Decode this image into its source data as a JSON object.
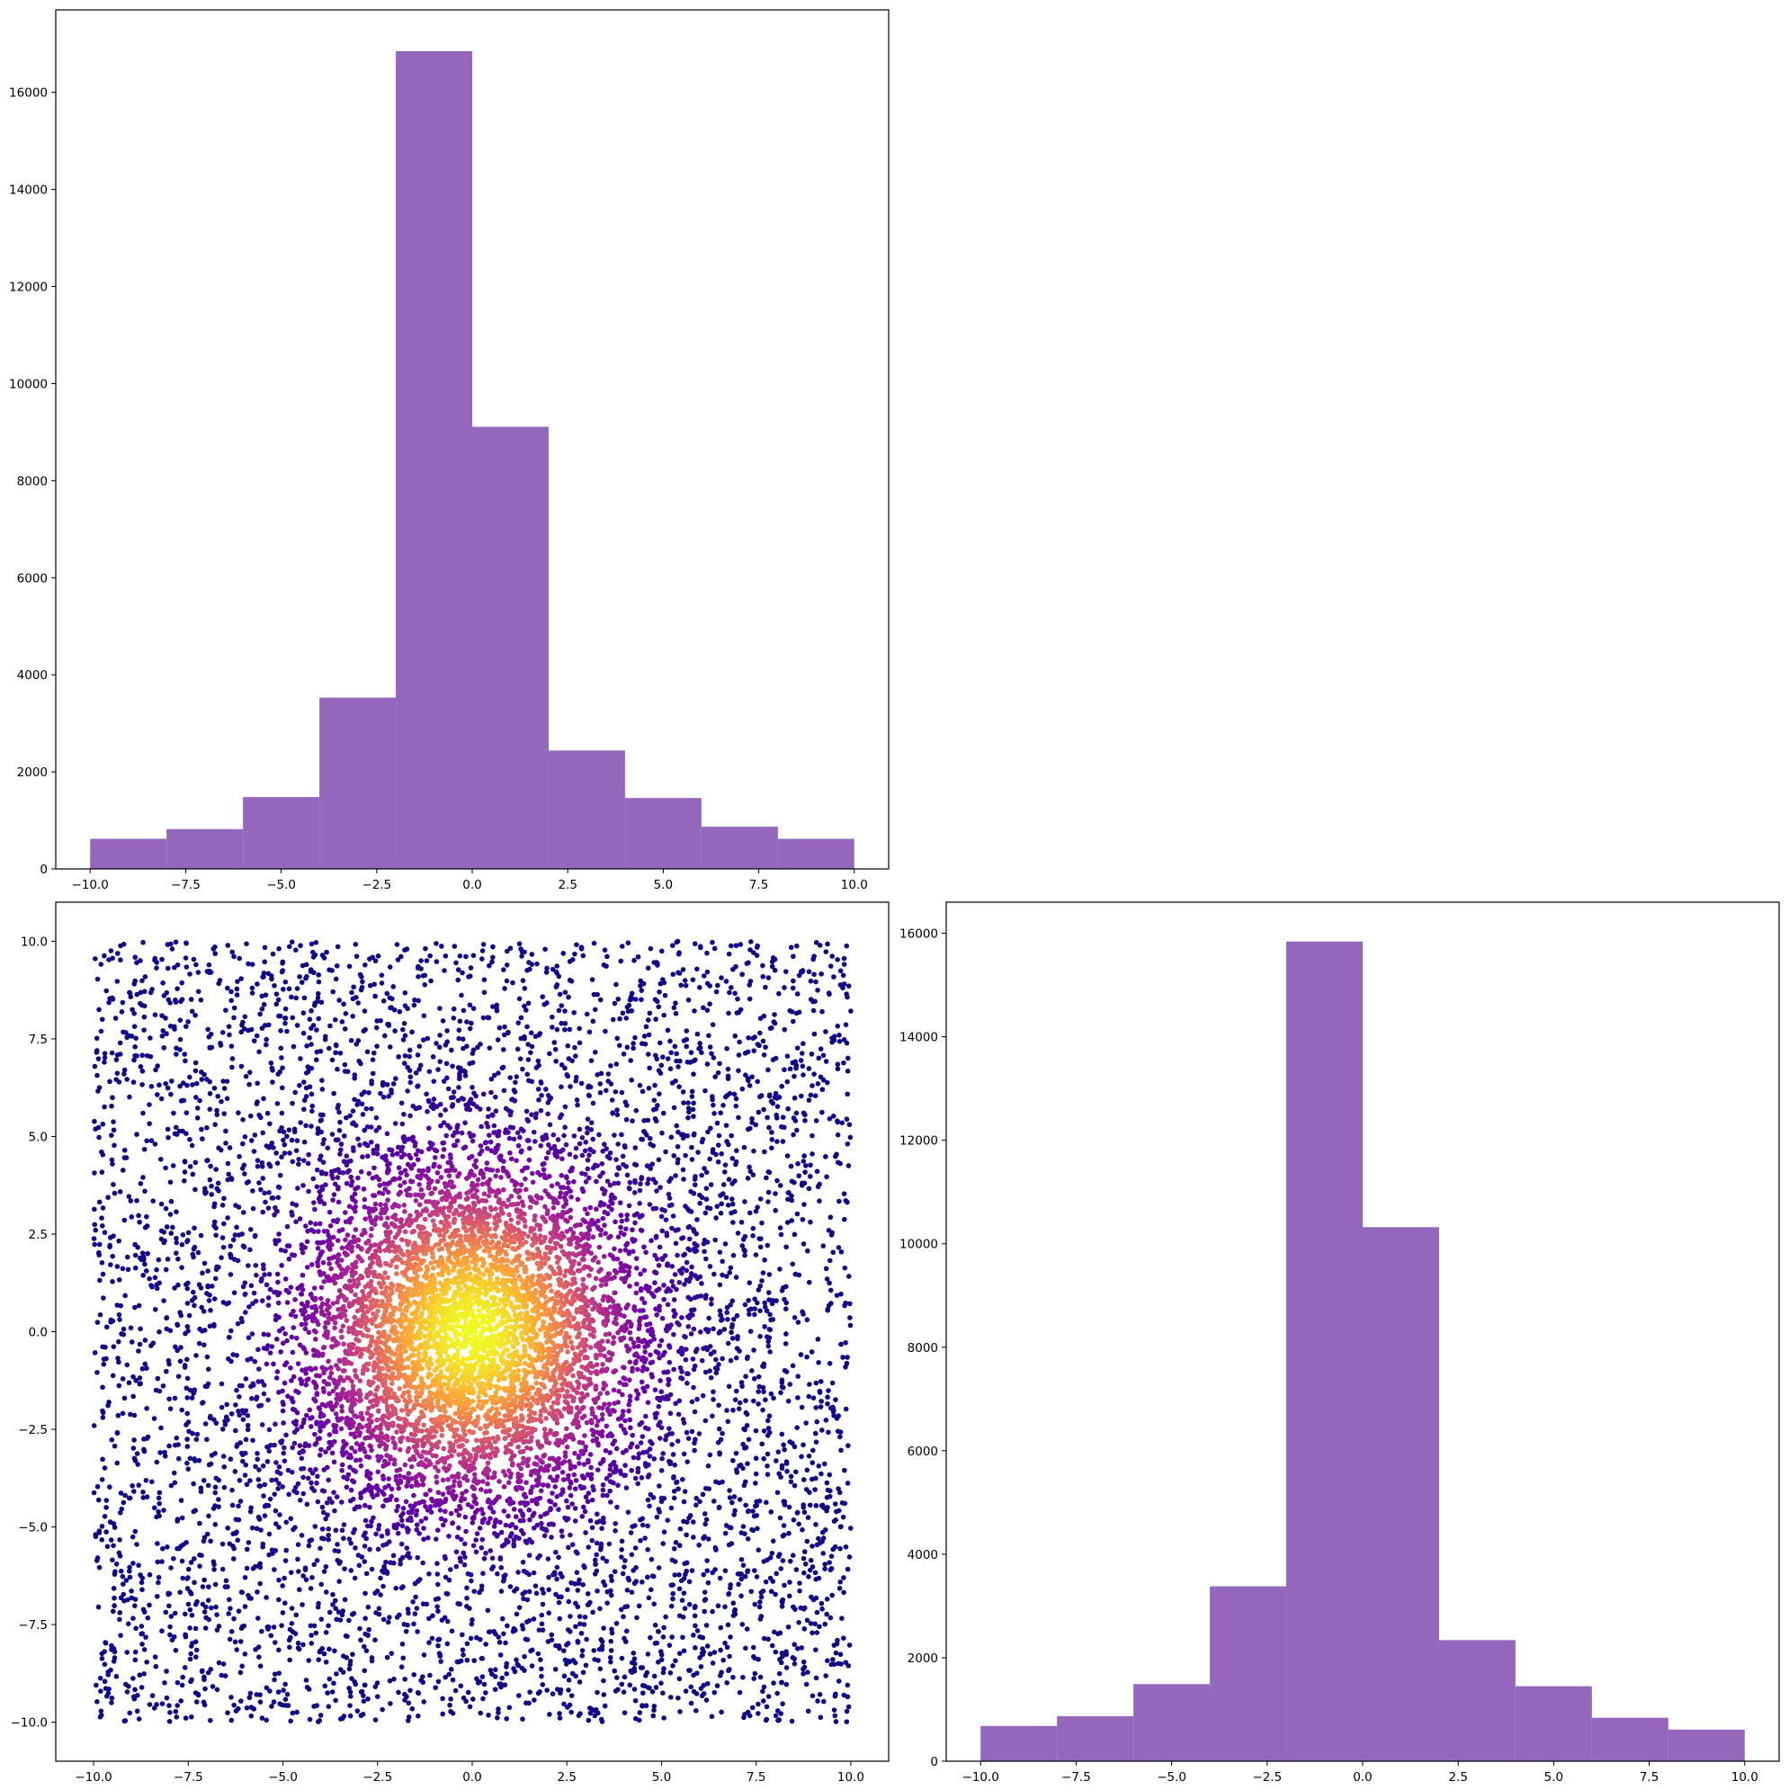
{
  "chart_data": [
    {
      "type": "bar",
      "title": "",
      "xlabel": "",
      "ylabel": "",
      "bin_edges": [
        -10,
        -8,
        -6,
        -4,
        -2,
        0,
        2,
        4,
        6,
        8,
        10
      ],
      "values": [
        620,
        820,
        1480,
        3530,
        16850,
        9110,
        2440,
        1460,
        870,
        620
      ],
      "xlim": [
        -10.9,
        10.9
      ],
      "ylim": [
        0,
        17700
      ],
      "xticks": [
        -10,
        -7.5,
        -5,
        -2.5,
        0,
        2.5,
        5,
        7.5,
        10
      ],
      "xtick_labels": [
        "−10.0",
        "−7.5",
        "−5.0",
        "−2.5",
        "0.0",
        "2.5",
        "5.0",
        "7.5",
        "10.0"
      ],
      "yticks": [
        0,
        2000,
        4000,
        6000,
        8000,
        10000,
        12000,
        14000,
        16000
      ],
      "ytick_labels": [
        "0",
        "2000",
        "4000",
        "6000",
        "8000",
        "10000",
        "12000",
        "14000",
        "16000"
      ],
      "bar_color": "#9467bd",
      "grid": false
    },
    {
      "type": "scatter",
      "title": "",
      "xlabel": "",
      "ylabel": "",
      "description_of_data": "uniform scatter over the square [-10, 10] x [-10, 10], density-colored, dense near the origin",
      "x_range": [
        -10,
        10
      ],
      "y_range": [
        -10,
        10
      ],
      "point_count_estimate": 10000,
      "color_scale": [
        "#0d0887",
        "#6a00a8",
        "#b12a90",
        "#e16462",
        "#fca636",
        "#f0f921"
      ],
      "peak_location": [
        0,
        0
      ],
      "xlim": [
        -11,
        11
      ],
      "ylim": [
        -11,
        11
      ],
      "xticks": [
        -10,
        -7.5,
        -5,
        -2.5,
        0,
        2.5,
        5,
        7.5,
        10
      ],
      "xtick_labels": [
        "−10.0",
        "−7.5",
        "−5.0",
        "−2.5",
        "0.0",
        "2.5",
        "5.0",
        "7.5",
        "10.0"
      ],
      "yticks": [
        -10,
        -7.5,
        -5,
        -2.5,
        0,
        2.5,
        5,
        7.5,
        10
      ],
      "ytick_labels": [
        "−10.0",
        "−7.5",
        "−5.0",
        "−2.5",
        "0.0",
        "2.5",
        "5.0",
        "7.5",
        "10.0"
      ],
      "grid": false
    },
    {
      "type": "bar",
      "title": "",
      "xlabel": "",
      "ylabel": "",
      "bin_edges": [
        -10,
        -8,
        -6,
        -4,
        -2,
        0,
        2,
        4,
        6,
        8,
        10
      ],
      "values": [
        680,
        870,
        1490,
        3380,
        15840,
        10320,
        2340,
        1450,
        840,
        610
      ],
      "xlim": [
        -10.9,
        10.9
      ],
      "ylim": [
        0,
        16600
      ],
      "xticks": [
        -10,
        -7.5,
        -5,
        -2.5,
        0,
        2.5,
        5,
        7.5,
        10
      ],
      "xtick_labels": [
        "−10.0",
        "−7.5",
        "−5.0",
        "−2.5",
        "0.0",
        "2.5",
        "5.0",
        "7.5",
        "10.0"
      ],
      "yticks": [
        0,
        2000,
        4000,
        6000,
        8000,
        10000,
        12000,
        14000,
        16000
      ],
      "ytick_labels": [
        "0",
        "2000",
        "4000",
        "6000",
        "8000",
        "10000",
        "12000",
        "14000",
        "16000"
      ],
      "bar_color": "#9467bd",
      "grid": false
    }
  ]
}
